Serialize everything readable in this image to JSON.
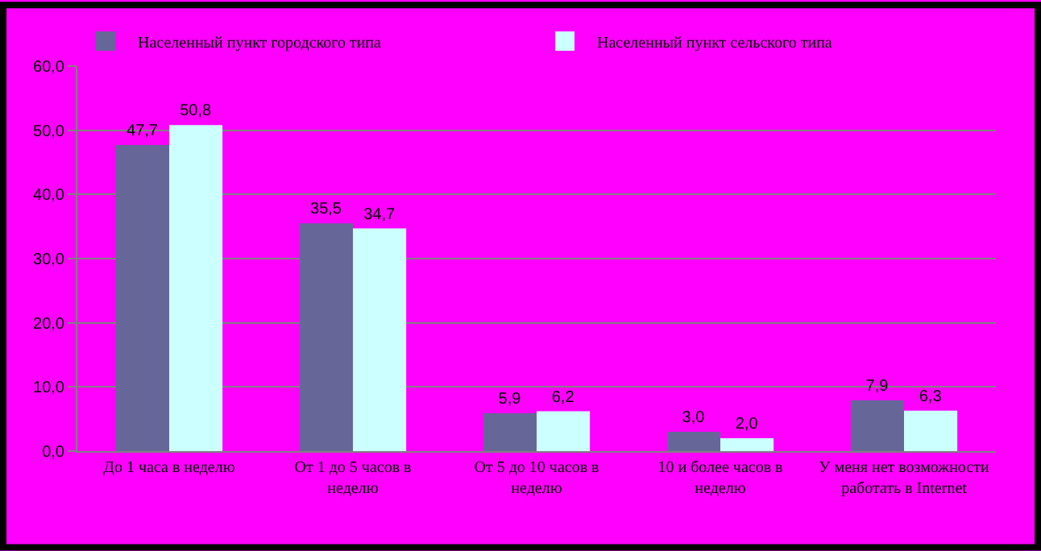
{
  "chart_data": {
    "type": "bar",
    "categories": [
      "До 1 часа в неделю",
      "От 1 до 5 часов в неделю",
      "От 5 до 10 часов в неделю",
      "10 и более часов в неделю",
      "У меня нет возможности работать в Internet"
    ],
    "series": [
      {
        "name": "Населенный пункт городского типа",
        "color": "#666699",
        "values": [
          47.7,
          35.5,
          5.9,
          3.0,
          7.9
        ],
        "value_labels": [
          "47,7",
          "35,5",
          "5,9",
          "3,0",
          "7,9"
        ]
      },
      {
        "name": "Населенный пункт сельского типа",
        "color": "#ccffff",
        "values": [
          50.8,
          34.7,
          6.2,
          2.0,
          6.3
        ],
        "value_labels": [
          "50,8",
          "34,7",
          "6,2",
          "2,0",
          "6,3"
        ]
      }
    ],
    "ylim": [
      0,
      60
    ],
    "yticks": [
      {
        "value": 0,
        "label": "0,0"
      },
      {
        "value": 10,
        "label": "10,0"
      },
      {
        "value": 20,
        "label": "20,0"
      },
      {
        "value": 30,
        "label": "30,0"
      },
      {
        "value": 40,
        "label": "40,0"
      },
      {
        "value": 50,
        "label": "50,0"
      },
      {
        "value": 60,
        "label": "60,0"
      }
    ],
    "grid": "y",
    "legend": "top"
  }
}
